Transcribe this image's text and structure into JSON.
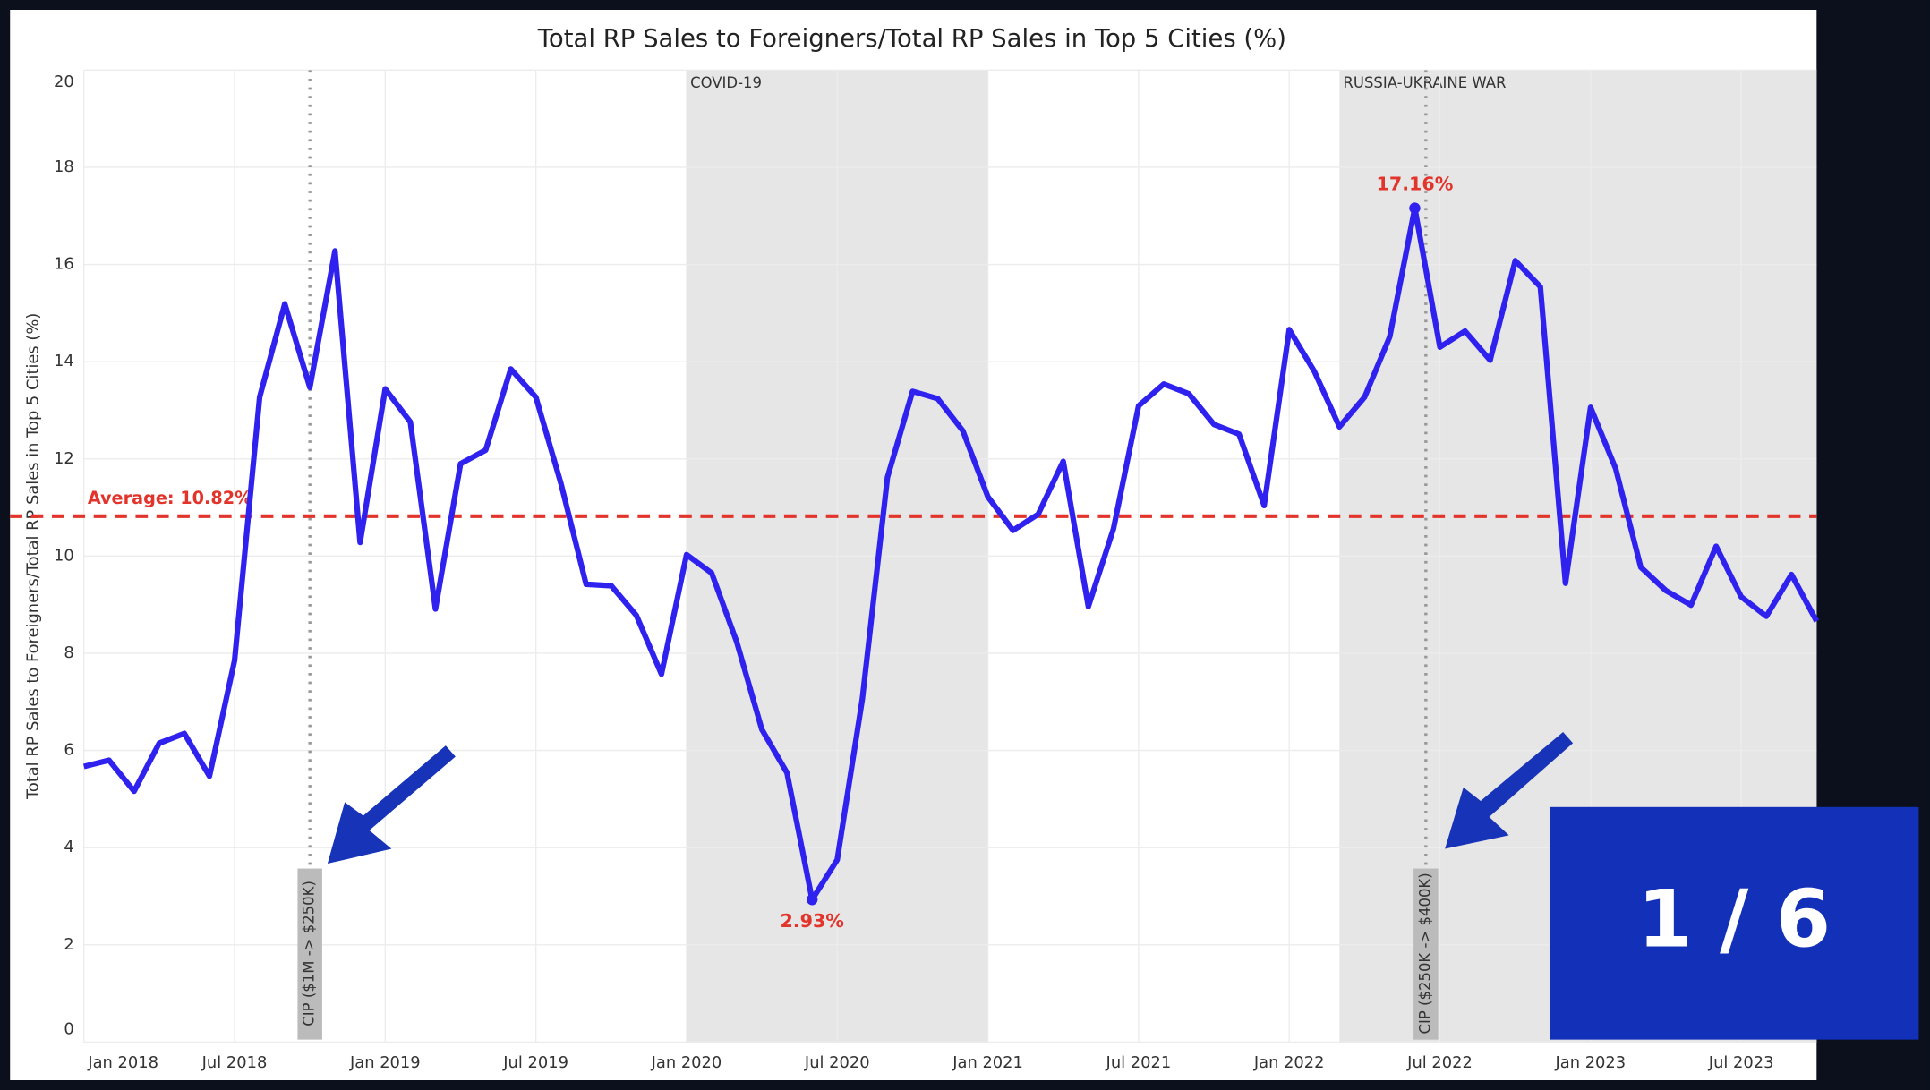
{
  "chart_data": {
    "type": "line",
    "title": "Total RP Sales to Foreigners/Total RP Sales in Top 5 Cities (%)",
    "y_label": "Total RP Sales to Foreigners/Total RP Sales in Top 5 Cities (%)",
    "x": [
      "2018-01",
      "2018-02",
      "2018-03",
      "2018-04",
      "2018-05",
      "2018-06",
      "2018-07",
      "2018-08",
      "2018-09",
      "2018-10",
      "2018-11",
      "2018-12",
      "2019-01",
      "2019-02",
      "2019-03",
      "2019-04",
      "2019-05",
      "2019-06",
      "2019-07",
      "2019-08",
      "2019-09",
      "2019-10",
      "2019-11",
      "2019-12",
      "2020-01",
      "2020-02",
      "2020-03",
      "2020-04",
      "2020-05",
      "2020-06",
      "2020-07",
      "2020-08",
      "2020-09",
      "2020-10",
      "2020-11",
      "2020-12",
      "2021-01",
      "2021-02",
      "2021-03",
      "2021-04",
      "2021-05",
      "2021-06",
      "2021-07",
      "2021-08",
      "2021-09",
      "2021-10",
      "2021-11",
      "2021-12",
      "2022-01",
      "2022-02",
      "2022-03",
      "2022-04",
      "2022-05",
      "2022-06",
      "2022-07",
      "2022-08",
      "2022-09",
      "2022-10",
      "2022-11",
      "2022-12",
      "2023-01",
      "2023-02",
      "2023-03",
      "2023-04",
      "2023-05",
      "2023-06",
      "2023-07",
      "2023-08",
      "2023-09",
      "2023-10"
    ],
    "series": [
      {
        "name": "Total RP Sales to Foreigners/Total RP Sales in Top 5 Cities (%)",
        "color": "#2f22ee",
        "values": [
          5.67,
          5.8,
          5.16,
          6.15,
          6.35,
          5.47,
          7.85,
          13.27,
          15.19,
          13.47,
          16.28,
          10.28,
          13.44,
          12.76,
          8.91,
          11.9,
          12.18,
          13.85,
          13.27,
          11.49,
          9.42,
          9.39,
          8.78,
          7.57,
          10.03,
          9.65,
          8.23,
          6.43,
          5.54,
          2.93,
          3.75,
          7.06,
          11.62,
          13.39,
          13.24,
          12.58,
          11.22,
          10.53,
          10.86,
          11.95,
          8.96,
          10.56,
          13.09,
          13.54,
          13.34,
          12.71,
          12.51,
          11.04,
          14.66,
          13.8,
          12.66,
          13.27,
          14.51,
          17.16,
          14.3,
          14.63,
          14.03,
          16.08,
          15.54,
          9.44,
          13.06,
          11.8,
          9.77,
          9.29,
          8.99,
          10.2,
          9.16,
          8.76,
          9.62,
          8.66
        ]
      }
    ],
    "ylim": [
      0,
      20
    ],
    "yticks": [
      0,
      2,
      4,
      6,
      8,
      10,
      12,
      14,
      16,
      18,
      20
    ],
    "xticks": [
      {
        "value": "2018-01",
        "label": "Jan 2018"
      },
      {
        "value": "2018-07",
        "label": "Jul 2018"
      },
      {
        "value": "2019-01",
        "label": "Jan 2019"
      },
      {
        "value": "2019-07",
        "label": "Jul 2019"
      },
      {
        "value": "2020-01",
        "label": "Jan 2020"
      },
      {
        "value": "2020-07",
        "label": "Jul 2020"
      },
      {
        "value": "2021-01",
        "label": "Jan 2021"
      },
      {
        "value": "2021-07",
        "label": "Jul 2021"
      },
      {
        "value": "2022-01",
        "label": "Jan 2022"
      },
      {
        "value": "2022-07",
        "label": "Jul 2022"
      },
      {
        "value": "2023-01",
        "label": "Jan 2023"
      },
      {
        "value": "2023-07",
        "label": "Jul 2023"
      }
    ],
    "grid": true,
    "average": {
      "value": 10.82,
      "label": "Average: 10.82%",
      "color": "#e2342b"
    },
    "point_labels": [
      {
        "x": "2022-06",
        "label": "17.16%"
      },
      {
        "x": "2020-06",
        "label": "2.93%"
      }
    ],
    "periods": [
      {
        "label": "COVID-19",
        "start": "2020-01",
        "end": "2021-01"
      },
      {
        "label": "RUSSIA-UKRAINE WAR",
        "start": "2022-03",
        "end": "2023-10"
      }
    ],
    "events": [
      {
        "x": "2018-10",
        "label": "CIP ($1M -> $250K)"
      },
      {
        "x": "2022-06",
        "label": "CIP ($250K -> $400K)"
      }
    ]
  },
  "page_indicator": "1 / 6"
}
